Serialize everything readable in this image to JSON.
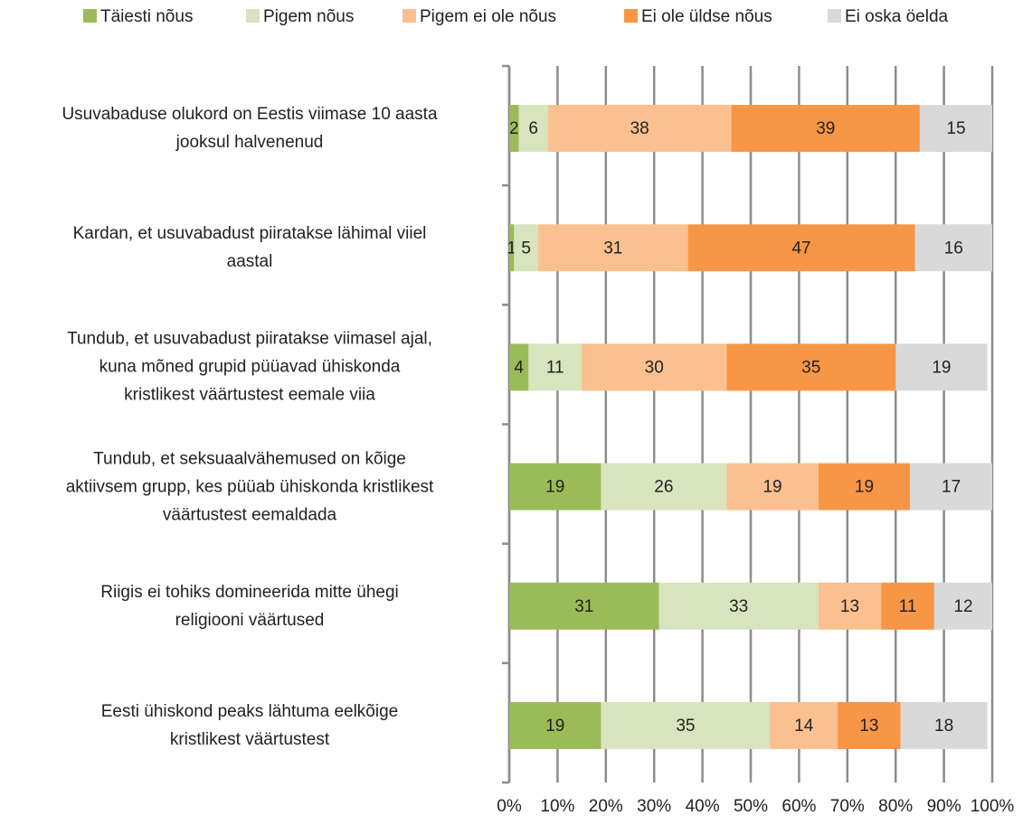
{
  "chart_data": {
    "type": "bar",
    "orientation": "horizontal",
    "stacked": true,
    "categories": [
      "Usuvabaduse olukord on Eestis viimase 10 aasta\njooksul halvenenud",
      "Kardan, et usuvabadust piiratakse lähimal viiel\naastal",
      "Tundub, et usuvabadust piiratakse viimasel ajal,\nkuna mõned grupid püüavad ühiskonda\nkristlikest väärtustest eemale viia",
      "Tundub, et seksuaalvähemused on kõige\naktiivsem grupp, kes püüab ühiskonda kristlikest\nväärtustest eemaldada",
      "Riigis ei tohiks domineerida mitte ühegi\nreligiooni väärtused",
      "Eesti ühiskond peaks lähtuma eelkõige\nkristlikest väärtustest"
    ],
    "series": [
      {
        "name": "Täiesti nõus",
        "color": "#9bbb59",
        "values": [
          2,
          1,
          4,
          19,
          31,
          19
        ]
      },
      {
        "name": "Pigem nõus",
        "color": "#d7e4bd",
        "values": [
          6,
          5,
          11,
          26,
          33,
          35
        ]
      },
      {
        "name": "Pigem ei ole nõus",
        "color": "#fac090",
        "values": [
          38,
          31,
          30,
          19,
          13,
          14
        ]
      },
      {
        "name": "Ei ole üldse nõus",
        "color": "#f79646",
        "values": [
          39,
          47,
          35,
          19,
          11,
          13
        ]
      },
      {
        "name": "Ei oska öelda",
        "color": "#d9d9d9",
        "values": [
          15,
          16,
          19,
          17,
          12,
          18
        ]
      }
    ],
    "xlim": [
      0,
      100
    ],
    "xticks": [
      {
        "value": 0,
        "label": "0%"
      },
      {
        "value": 10,
        "label": "10%"
      },
      {
        "value": 20,
        "label": "20%"
      },
      {
        "value": 30,
        "label": "30%"
      },
      {
        "value": 40,
        "label": "40%"
      },
      {
        "value": 50,
        "label": "50%"
      },
      {
        "value": 60,
        "label": "60%"
      },
      {
        "value": 70,
        "label": "70%"
      },
      {
        "value": 80,
        "label": "80%"
      },
      {
        "value": 90,
        "label": "90%"
      },
      {
        "value": 100,
        "label": "100%"
      }
    ],
    "grid": true,
    "legend": "top"
  }
}
